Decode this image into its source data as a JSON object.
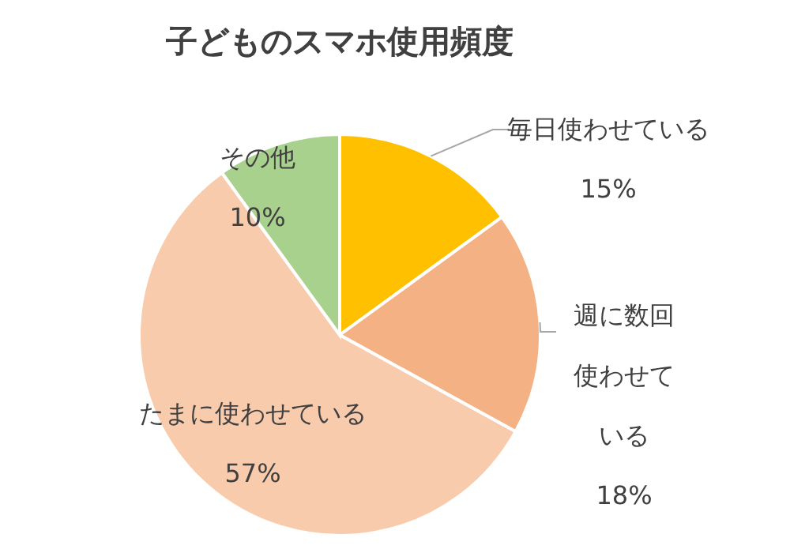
{
  "chart_data": {
    "type": "pie",
    "title": "子どものスマホ使用頻度",
    "categories": [
      "毎日使わせている",
      "週に数回使わせている",
      "たまに使わせている",
      "その他"
    ],
    "values": [
      15,
      18,
      57,
      10
    ],
    "value_labels": [
      "15%",
      "18%",
      "57%",
      "10%"
    ],
    "colors": [
      "#ffc000",
      "#f4b183",
      "#f8cbad",
      "#a9d18e"
    ]
  }
}
